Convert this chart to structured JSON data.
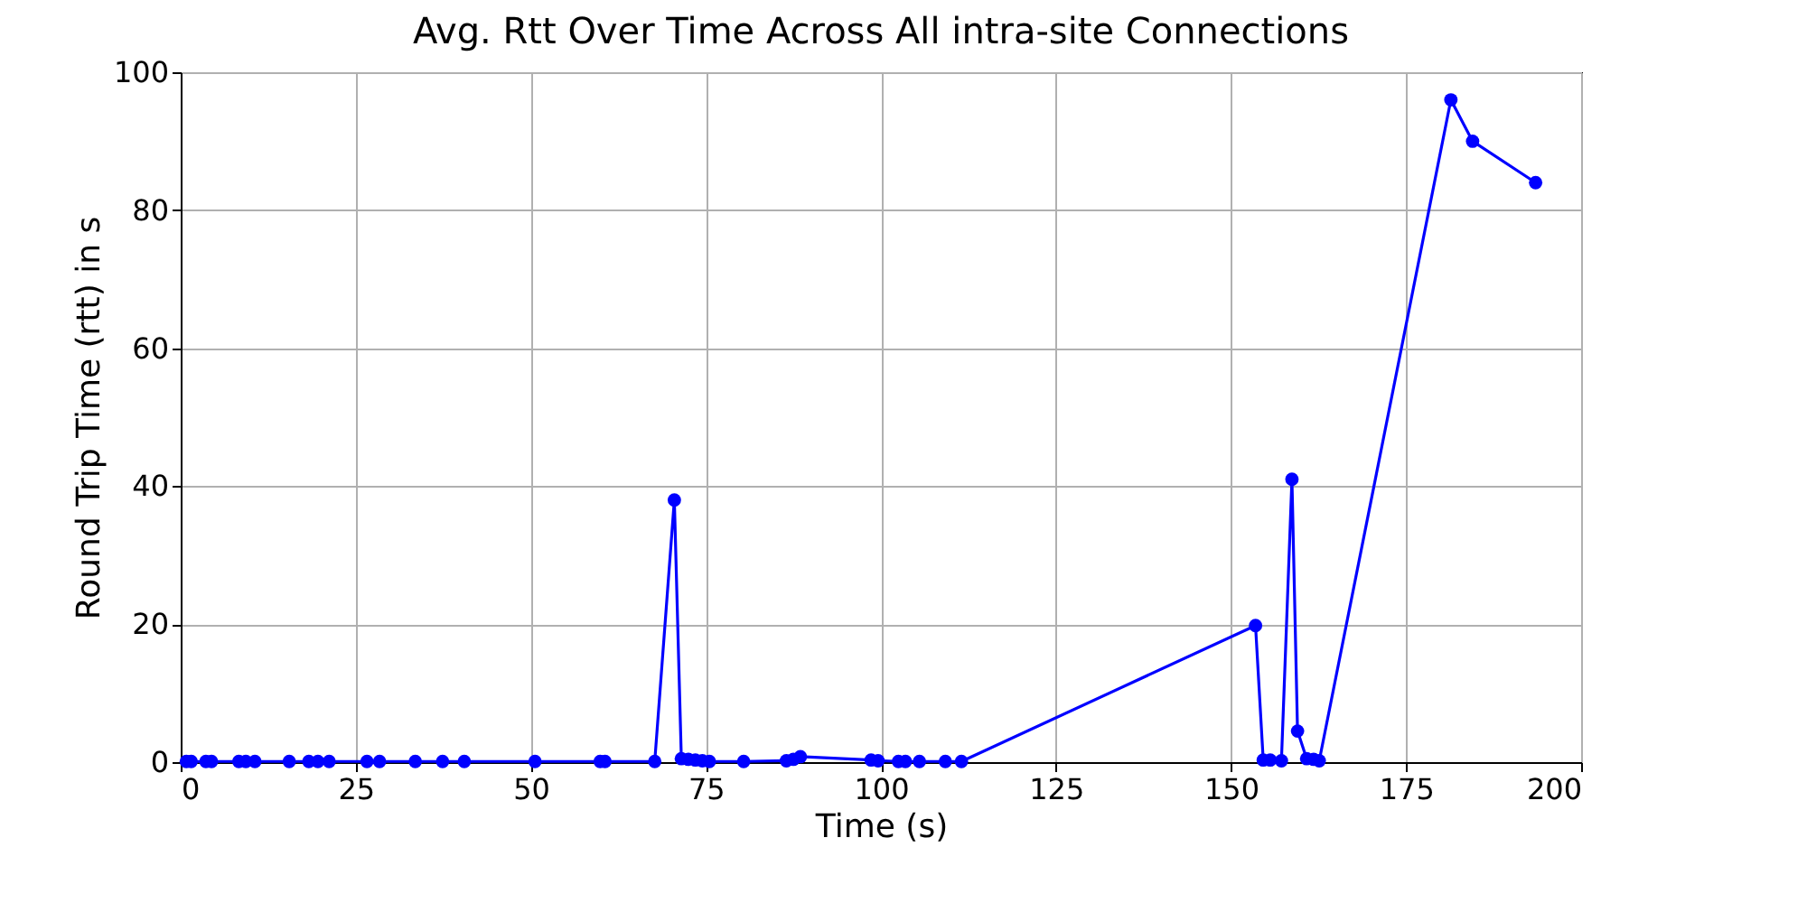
{
  "chart_data": {
    "type": "line",
    "title": "Avg. Rtt Over Time Across All intra-site Connections",
    "xlabel": "Time (s)",
    "ylabel": "Round Trip Time (rtt) in s",
    "x": [
      0.8,
      1.5,
      3.6,
      4.4,
      8.3,
      9.3,
      10.6,
      15.5,
      18.3,
      19.6,
      21.2,
      26.6,
      28.4,
      33.5,
      37.4,
      40.5,
      50.6,
      59.9,
      60.6,
      67.7,
      70.5,
      71.5,
      72.5,
      73.5,
      74.5,
      75.5,
      80.4,
      86.5,
      87.5,
      88.5,
      98.6,
      99.6,
      102.5,
      103.5,
      105.5,
      109.2,
      111.5,
      153.5,
      154.6,
      155.6,
      157.2,
      158.7,
      159.5,
      160.8,
      161.8,
      162.6,
      181.4,
      184.5,
      193.5
    ],
    "series": [
      {
        "color": "#0000ff",
        "values": [
          0.1,
          0.1,
          0.1,
          0.1,
          0.1,
          0.1,
          0.1,
          0.1,
          0.1,
          0.1,
          0.1,
          0.1,
          0.1,
          0.1,
          0.1,
          0.1,
          0.1,
          0.1,
          0.1,
          0.1,
          38,
          0.5,
          0.4,
          0.3,
          0.2,
          0.1,
          0.1,
          0.2,
          0.4,
          0.8,
          0.3,
          0.2,
          0.1,
          0.1,
          0.1,
          0.1,
          0.1,
          19.8,
          0.3,
          0.3,
          0.2,
          41,
          4.5,
          0.5,
          0.4,
          0.2,
          96,
          90,
          84
        ]
      }
    ],
    "xlim": [
      0,
      200
    ],
    "ylim": [
      0,
      100
    ],
    "xticks": [
      0,
      25,
      50,
      75,
      100,
      125,
      150,
      175,
      200
    ],
    "yticks": [
      0,
      20,
      40,
      60,
      80,
      100
    ],
    "grid": true,
    "marker": "circle",
    "line_style": "solid"
  }
}
